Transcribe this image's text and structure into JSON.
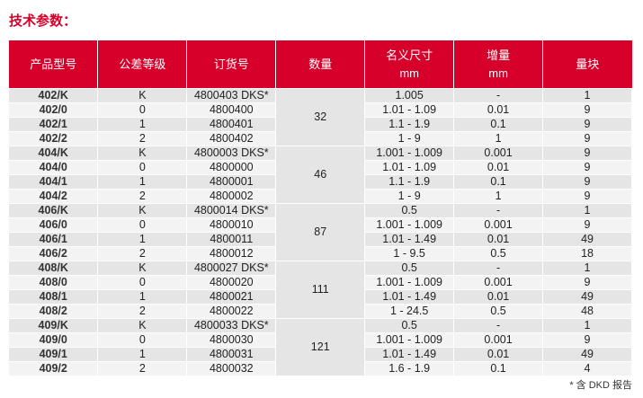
{
  "title": "技术参数：",
  "headers": [
    "产品型号",
    "公差等级",
    "订货号",
    "数量",
    "名义尺寸",
    "增量",
    "量块"
  ],
  "header_units": {
    "nominal": "mm",
    "increment": "mm"
  },
  "groups": [
    {
      "qty": "32",
      "rows": [
        [
          "402/K",
          "K",
          "4800403 DKS*",
          "1.005",
          "-",
          "1"
        ],
        [
          "402/0",
          "0",
          "4800400",
          "1.01 - 1.09",
          "0.01",
          "9"
        ],
        [
          "402/1",
          "1",
          "4800401",
          "1.1 - 1.9",
          "0.1",
          "9"
        ],
        [
          "402/2",
          "2",
          "4800402",
          "1 - 9",
          "1",
          "9"
        ]
      ]
    },
    {
      "qty": "46",
      "rows": [
        [
          "404/K",
          "K",
          "4800003 DKS*",
          "1.001 - 1.009",
          "0.001",
          "9"
        ],
        [
          "404/0",
          "0",
          "4800000",
          "1.01 - 1.09",
          "0.01",
          "9"
        ],
        [
          "404/1",
          "1",
          "4800001",
          "1.1 - 1.9",
          "0.1",
          "9"
        ],
        [
          "404/2",
          "2",
          "4800002",
          "1 - 9",
          "1",
          "9"
        ]
      ]
    },
    {
      "qty": "87",
      "rows": [
        [
          "406/K",
          "K",
          "4800014 DKS*",
          "0.5",
          "-",
          "1"
        ],
        [
          "406/0",
          "0",
          "4800010",
          "1.001 - 1.009",
          "0.001",
          "9"
        ],
        [
          "406/1",
          "1",
          "4800011",
          "1.01 - 1.49",
          "0.01",
          "49"
        ],
        [
          "406/2",
          "2",
          "4800012",
          "1 - 9.5",
          "0.5",
          "18"
        ]
      ]
    },
    {
      "qty": "111",
      "rows": [
        [
          "408/K",
          "K",
          "4800027 DKS*",
          "0.5",
          "-",
          "1"
        ],
        [
          "408/0",
          "0",
          "4800020",
          "1.001 - 1.009",
          "0.001",
          "9"
        ],
        [
          "408/1",
          "1",
          "4800021",
          "1.01 - 1.49",
          "0.01",
          "49"
        ],
        [
          "408/2",
          "2",
          "4800022",
          "1 - 24.5",
          "0.5",
          "48"
        ]
      ]
    },
    {
      "qty": "121",
      "rows": [
        [
          "409/K",
          "K",
          "4800033 DKS*",
          "0.5",
          "-",
          "1"
        ],
        [
          "409/0",
          "0",
          "4800030",
          "1.001 - 1.009",
          "0.001",
          "9"
        ],
        [
          "409/1",
          "1",
          "4800031",
          "1.01 - 1.49",
          "0.01",
          "49"
        ],
        [
          "409/2",
          "2",
          "4800032",
          "1.6 - 1.9",
          "0.1",
          "4"
        ]
      ]
    }
  ],
  "footnote": "* 含 DKD 报告",
  "colors": {
    "accent": "#d7002a",
    "row_dark": "#e5e5e5",
    "row_light": "#f3f3f3"
  }
}
